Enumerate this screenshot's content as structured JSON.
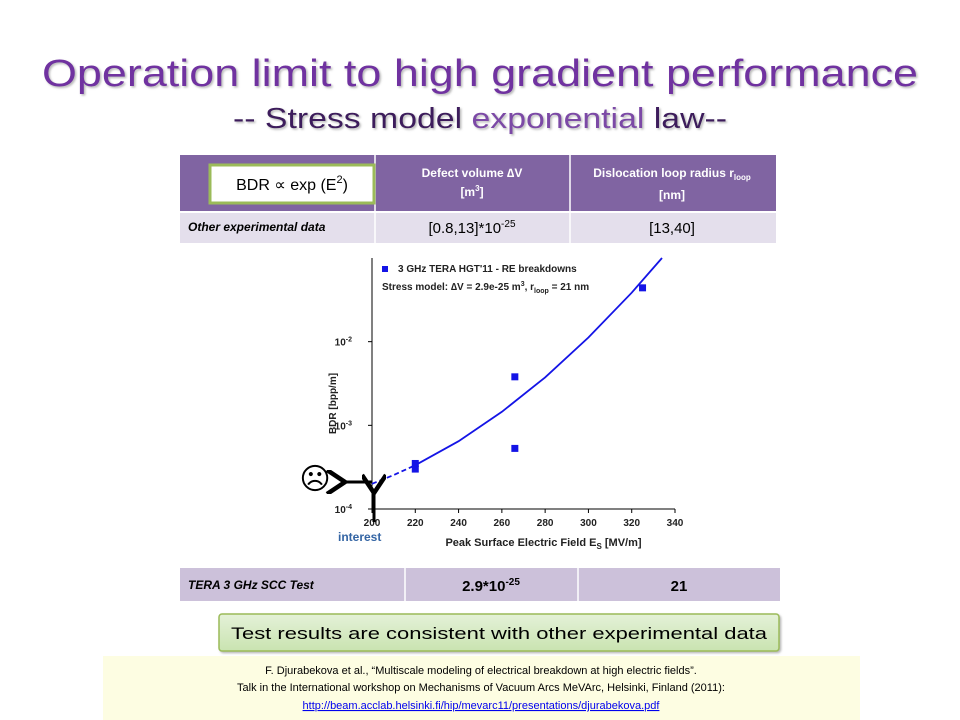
{
  "title": "Operation limit to high gradient performance",
  "subtitle": {
    "before": "-- Stress model ",
    "highlight": "exponential",
    "after": " law--"
  },
  "top_table": {
    "badge": {
      "text": "BDR ∝ exp (E",
      "sup": "2",
      "end": ")"
    },
    "headers": [
      {
        "line1": "Defect volume ∆V",
        "unit": "[m",
        "sup": "3",
        "unit_end": "]"
      },
      {
        "line1": "Dislocation loop radius r",
        "sub": "loop",
        "line2": "[nm]"
      }
    ],
    "row": {
      "label": "Other experimental data",
      "volume": "[0.8,13]*10",
      "volume_sup": "-25",
      "radius": "[13,40]"
    }
  },
  "chart_data": {
    "type": "scatter",
    "log_y": true,
    "legend": "top-left",
    "xlim": [
      200,
      340
    ],
    "ylim": [
      0.0001,
      0.1
    ],
    "xticks": [
      200,
      220,
      240,
      260,
      280,
      300,
      320,
      340
    ],
    "yticks": [
      {
        "value": 0.0001,
        "label": "10",
        "exponent": "-4"
      },
      {
        "value": 0.001,
        "label": "10",
        "exponent": "-3"
      },
      {
        "value": 0.01,
        "label": "10",
        "exponent": "-2"
      }
    ],
    "xlabel": {
      "text": "Peak Surface Electric Field E",
      "sub": "S",
      "end": " [MV/m]"
    },
    "ylabel": "BDR [bpp/m]",
    "series": [
      {
        "name": "3 GHz TERA HGT'11 - RE breakdowns",
        "color": "#1414e6",
        "marker": "square",
        "x": [
          220,
          220,
          266,
          266,
          325
        ],
        "values": [
          0.00035,
          0.0003,
          0.0038,
          0.00053,
          0.044
        ]
      },
      {
        "name": "Stress model: ∆V = 2.9e-25 m",
        "name_sup": "3",
        "name_mid": ", r",
        "name_sub": "loop",
        "name_end": " = 21 nm",
        "color": "#1414e6",
        "marker": "line",
        "x": [
          220,
          240,
          260,
          280,
          300,
          320,
          334
        ],
        "values": [
          0.000334,
          0.000647,
          0.00145,
          0.00374,
          0.0112,
          0.0385,
          0.1
        ]
      },
      {
        "color": "#1414e6",
        "marker": "line",
        "line_style": "dashed",
        "x": [
          200,
          210,
          220
        ],
        "values": [
          0.0002,
          0.000254,
          0.000334
        ]
      }
    ]
  },
  "annotations": {
    "face": "☹",
    "interest": "interest"
  },
  "bottom_table": {
    "label": "TERA 3 GHz SCC Test",
    "volume": "2.9*10",
    "volume_sup": "-25",
    "radius": "21"
  },
  "conclusion": "Test results are consistent with other experimental data",
  "citation": {
    "line1": "F. Djurabekova et al., “Multiscale modeling of electrical breakdown at high electric fields”.",
    "line2": "Talk in the International workshop on Mechanisms of Vacuum Arcs MeVArc, Helsinki, Finland (2011):",
    "link": "http://beam.acclab.helsinki.fi/hip/mevarc11/presentations/djurabekova.pdf"
  }
}
